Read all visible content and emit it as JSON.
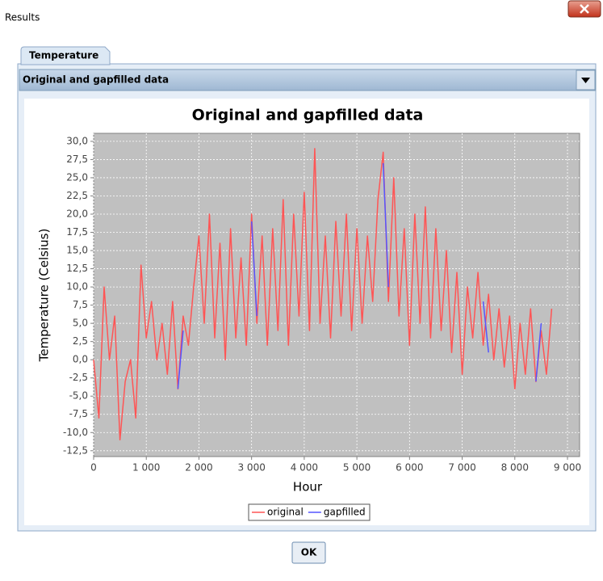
{
  "window": {
    "title": "Results"
  },
  "tab": "Temperature",
  "dropdown": {
    "selected": "Original and gapfilled data"
  },
  "button": {
    "ok": "OK"
  },
  "chart_data": {
    "type": "line",
    "title": "Original and gapfilled data",
    "xlabel": "Hour",
    "ylabel": "Temperature (Celsius)",
    "x": [
      0,
      100,
      200,
      300,
      400,
      500,
      600,
      700,
      800,
      900,
      1000,
      1100,
      1200,
      1300,
      1400,
      1500,
      1600,
      1700,
      1800,
      1900,
      2000,
      2100,
      2200,
      2300,
      2400,
      2500,
      2600,
      2700,
      2800,
      2900,
      3000,
      3100,
      3200,
      3300,
      3400,
      3500,
      3600,
      3700,
      3800,
      3900,
      4000,
      4100,
      4200,
      4300,
      4400,
      4500,
      4600,
      4700,
      4800,
      4900,
      5000,
      5100,
      5200,
      5300,
      5400,
      5500,
      5600,
      5700,
      5800,
      5900,
      6000,
      6100,
      6200,
      6300,
      6400,
      6500,
      6600,
      6700,
      6800,
      6900,
      7000,
      7100,
      7200,
      7300,
      7400,
      7500,
      7600,
      7700,
      7800,
      7900,
      8000,
      8100,
      8200,
      8300,
      8400,
      8500,
      8600,
      8700
    ],
    "series": [
      {
        "name": "original",
        "color": "#ff5555",
        "values": [
          0,
          -8,
          10,
          0,
          6,
          -11,
          -3,
          0,
          -8,
          13,
          3,
          8,
          0,
          5,
          -2,
          8,
          -4,
          6,
          2,
          10,
          17,
          5,
          20,
          3,
          16,
          0,
          18,
          3,
          14,
          2,
          20,
          5,
          17,
          2,
          18,
          4,
          22,
          2,
          20,
          6,
          23,
          4,
          29,
          5,
          17,
          3,
          19,
          6,
          20,
          4,
          18,
          5,
          17,
          8,
          22,
          28.5,
          8,
          25,
          6,
          18,
          2,
          20,
          5,
          21,
          3,
          18,
          4,
          15,
          1,
          12,
          -2,
          10,
          3,
          12,
          2,
          9,
          0,
          7,
          -1,
          6,
          -4,
          5,
          -2,
          7,
          -3,
          4,
          -2,
          7
        ]
      },
      {
        "name": "gapfilled",
        "color": "#5555ff",
        "values": [
          null,
          null,
          null,
          null,
          null,
          null,
          null,
          null,
          null,
          null,
          null,
          null,
          null,
          null,
          null,
          null,
          -4,
          4,
          null,
          null,
          null,
          null,
          null,
          null,
          null,
          null,
          null,
          null,
          null,
          null,
          19,
          6,
          null,
          null,
          null,
          null,
          null,
          null,
          null,
          null,
          null,
          null,
          null,
          null,
          null,
          null,
          null,
          null,
          null,
          null,
          null,
          null,
          null,
          null,
          null,
          27,
          10,
          null,
          null,
          null,
          null,
          null,
          null,
          null,
          null,
          null,
          null,
          null,
          null,
          null,
          null,
          null,
          null,
          null,
          8,
          1,
          null,
          null,
          null,
          null,
          null,
          null,
          null,
          null,
          -3,
          5,
          null,
          null
        ]
      }
    ],
    "xlim": [
      0,
      9230
    ],
    "ylim": [
      -13.3,
      31.1
    ],
    "xticks": [
      0,
      {
        "value": 1000,
        "label": "1 000"
      },
      {
        "value": 2000,
        "label": "2 000"
      },
      {
        "value": 3000,
        "label": "3 000"
      },
      {
        "value": 4000,
        "label": "4 000"
      },
      {
        "value": 5000,
        "label": "5 000"
      },
      {
        "value": 6000,
        "label": "6 000"
      },
      {
        "value": 7000,
        "label": "7 000"
      },
      {
        "value": 8000,
        "label": "8 000"
      },
      {
        "value": 9000,
        "label": "9 000"
      }
    ],
    "yticks": [
      {
        "value": -12.5,
        "label": "-12,5"
      },
      {
        "value": -10,
        "label": "-10,0"
      },
      {
        "value": -7.5,
        "label": "-7,5"
      },
      {
        "value": -5,
        "label": "-5,0"
      },
      {
        "value": -2.5,
        "label": "-2,5"
      },
      {
        "value": 0,
        "label": "0,0"
      },
      {
        "value": 2.5,
        "label": "2,5"
      },
      {
        "value": 5,
        "label": "5,0"
      },
      {
        "value": 7.5,
        "label": "7,5"
      },
      {
        "value": 10,
        "label": "10,0"
      },
      {
        "value": 12.5,
        "label": "12,5"
      },
      {
        "value": 15,
        "label": "15,0"
      },
      {
        "value": 17.5,
        "label": "17,5"
      },
      {
        "value": 20,
        "label": "20,0"
      },
      {
        "value": 22.5,
        "label": "22,5"
      },
      {
        "value": 25,
        "label": "25,0"
      },
      {
        "value": 27.5,
        "label": "27,5"
      },
      {
        "value": 30,
        "label": "30,0"
      }
    ],
    "grid": true,
    "legend": "bottom"
  }
}
